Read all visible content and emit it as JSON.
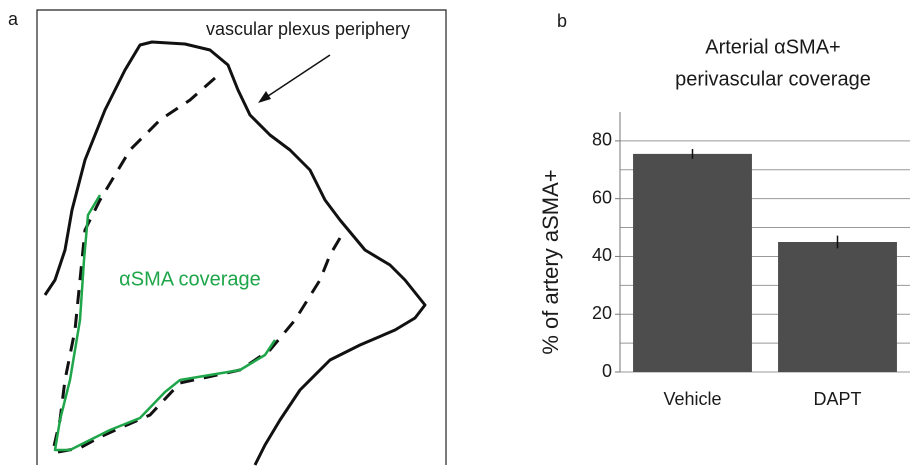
{
  "panel_a": {
    "label": "a",
    "periphery_label": "vascular plexus periphery",
    "coverage_label": "αSMA coverage"
  },
  "chart_data": {
    "type": "bar",
    "panel_label": "b",
    "title": [
      "Arterial αSMA+",
      "perivascular coverage"
    ],
    "y_label": "% of artery aSMA+",
    "categories": [
      "Vehicle",
      "DAPT"
    ],
    "values": [
      75.5,
      45
    ],
    "errors": [
      1.7,
      2.2
    ],
    "color": "#4d4d4d",
    "ylim": [
      0,
      90
    ],
    "yticks": [
      0,
      20,
      40,
      60,
      80
    ],
    "minor_yticks": [
      10,
      30,
      50,
      70
    ],
    "grid": true
  }
}
